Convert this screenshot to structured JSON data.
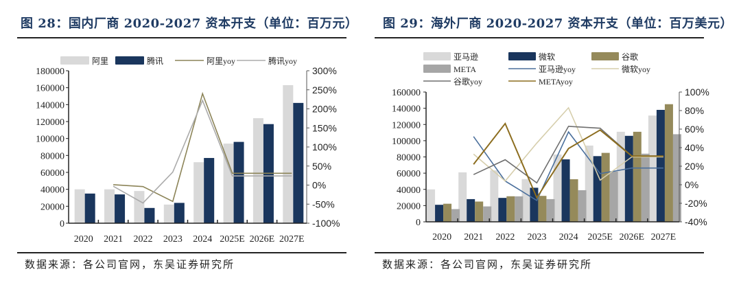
{
  "figures": [
    {
      "title": "图 28：国内厂商 2020-2027 资本开支（单位：百万元）",
      "source": "数据来源：各公司官网，东吴证券研究所"
    },
    {
      "title": "图 29：海外厂商 2020-2027 资本开支（单位：百万美元）",
      "source": "数据来源：各公司官网，东吴证券研究所"
    }
  ],
  "chart_data": [
    {
      "type": "bar",
      "title": "国内厂商 2020-2027 资本开支（单位：百万元）",
      "categories": [
        "2020",
        "2021",
        "2022",
        "2023",
        "2024",
        "2025E",
        "2026E",
        "2027E"
      ],
      "y_left": {
        "min": 0,
        "max": 180000,
        "step": 20000,
        "ticks": [
          "0",
          "20000",
          "40000",
          "60000",
          "80000",
          "100000",
          "120000",
          "140000",
          "160000",
          "180000"
        ]
      },
      "y_right": {
        "min": -100,
        "max": 300,
        "step": 50,
        "ticks": [
          "-100%",
          "-50%",
          "0%",
          "50%",
          "100%",
          "150%",
          "200%",
          "250%",
          "300%"
        ]
      },
      "legend_position": "top",
      "bar_series": [
        {
          "name": "阿里",
          "color": "#d9d9d9",
          "values": [
            40000,
            40000,
            38000,
            22000,
            72000,
            94000,
            124000,
            163000
          ]
        },
        {
          "name": "腾讯",
          "color": "#1a365d",
          "values": [
            35000,
            34000,
            18000,
            24000,
            77000,
            96000,
            117000,
            142000
          ]
        }
      ],
      "line_series": [
        {
          "name": "阿里yoy",
          "color": "#8c8458",
          "values": [
            null,
            1,
            -4,
            -43,
            240,
            31,
            31,
            31
          ]
        },
        {
          "name": "腾讯yoy",
          "color": "#ababab",
          "values": [
            null,
            -3,
            -47,
            34,
            222,
            24,
            24,
            24
          ]
        }
      ]
    },
    {
      "type": "bar",
      "title": "海外厂商 2020-2027 资本开支（单位：百万美元）",
      "categories": [
        "2020",
        "2021",
        "2022",
        "2023",
        "2024",
        "2025E",
        "2026E",
        "2027E"
      ],
      "y_left": {
        "min": 0,
        "max": 160000,
        "step": 20000,
        "ticks": [
          "0",
          "20000",
          "40000",
          "60000",
          "80000",
          "100000",
          "120000",
          "140000",
          "160000"
        ]
      },
      "y_right": {
        "min": -40,
        "max": 100,
        "step": 20,
        "ticks": [
          "-40%",
          "-20%",
          "0%",
          "20%",
          "40%",
          "60%",
          "80%",
          "100%"
        ]
      },
      "legend_position": "top",
      "bar_series": [
        {
          "name": "亚马逊",
          "color": "#d9d9d9",
          "values": [
            40000,
            61000,
            63500,
            52700,
            83000,
            94000,
            111000,
            131000
          ]
        },
        {
          "name": "微软",
          "color": "#1a365d",
          "values": [
            21000,
            28000,
            29500,
            42000,
            77000,
            81000,
            106000,
            138000
          ]
        },
        {
          "name": "谷歌",
          "color": "#958a5b",
          "values": [
            22300,
            25000,
            31500,
            32000,
            52500,
            85000,
            111000,
            145000
          ]
        },
        {
          "name": "META",
          "color": "#a6a6a6",
          "values": [
            15700,
            19000,
            31400,
            28000,
            39000,
            62000,
            84000,
            108000
          ]
        }
      ],
      "line_series": [
        {
          "name": "亚马逊yoy",
          "color": "#4a6f9c",
          "values": [
            null,
            52,
            4,
            -17,
            57,
            12,
            18,
            18
          ]
        },
        {
          "name": "微软yoy",
          "color": "#d6ceac",
          "values": [
            null,
            33,
            4,
            45,
            83,
            5,
            30,
            30
          ]
        },
        {
          "name": "谷歌yoy",
          "color": "#6e6e6e",
          "values": [
            null,
            11,
            27,
            2,
            63,
            61,
            31,
            31
          ]
        },
        {
          "name": "METAyoy",
          "color": "#8c6d1f",
          "values": [
            null,
            22,
            66,
            -14,
            39,
            59,
            31,
            31
          ]
        }
      ]
    }
  ]
}
